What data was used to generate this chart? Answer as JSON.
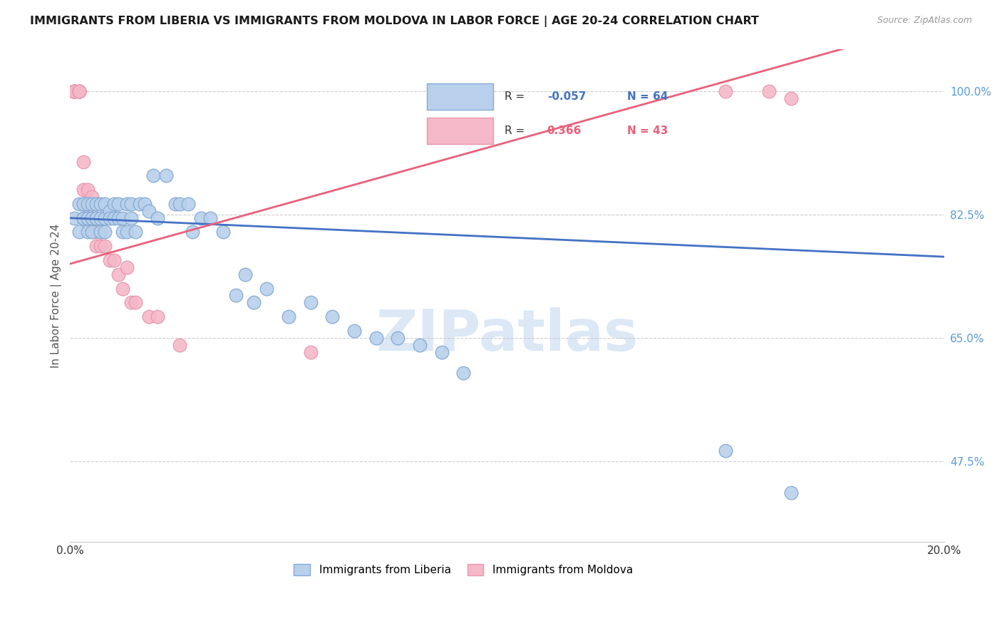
{
  "title": "IMMIGRANTS FROM LIBERIA VS IMMIGRANTS FROM MOLDOVA IN LABOR FORCE | AGE 20-24 CORRELATION CHART",
  "source": "Source: ZipAtlas.com",
  "ylabel": "In Labor Force | Age 20-24",
  "xlim": [
    0.0,
    0.2
  ],
  "ylim": [
    0.36,
    1.06
  ],
  "ytick_vals": [
    0.475,
    0.65,
    0.825,
    1.0
  ],
  "ytick_labels": [
    "47.5%",
    "65.0%",
    "82.5%",
    "100.0%"
  ],
  "r_liberia": -0.057,
  "n_liberia": 64,
  "r_moldova": 0.366,
  "n_moldova": 43,
  "line_color_liberia": "#4472c4",
  "line_color_moldova": "#e8607a",
  "dot_color_liberia": "#b8d0eb",
  "dot_color_moldova": "#f5b8c8",
  "dot_edge_liberia": "#85aad4",
  "dot_edge_moldova": "#e898b0",
  "watermark": "ZIPatlas",
  "liberia_x": [
    0.001,
    0.002,
    0.002,
    0.003,
    0.003,
    0.003,
    0.004,
    0.004,
    0.004,
    0.004,
    0.005,
    0.005,
    0.005,
    0.005,
    0.006,
    0.006,
    0.006,
    0.007,
    0.007,
    0.007,
    0.008,
    0.008,
    0.008,
    0.009,
    0.009,
    0.01,
    0.01,
    0.011,
    0.011,
    0.012,
    0.012,
    0.013,
    0.013,
    0.014,
    0.014,
    0.015,
    0.016,
    0.017,
    0.018,
    0.019,
    0.02,
    0.022,
    0.024,
    0.025,
    0.027,
    0.028,
    0.03,
    0.032,
    0.035,
    0.038,
    0.04,
    0.042,
    0.045,
    0.05,
    0.055,
    0.06,
    0.065,
    0.07,
    0.075,
    0.08,
    0.085,
    0.09,
    0.15,
    0.165
  ],
  "liberia_y": [
    0.82,
    0.84,
    0.8,
    0.82,
    0.84,
    0.82,
    0.82,
    0.84,
    0.82,
    0.8,
    0.82,
    0.84,
    0.82,
    0.8,
    0.82,
    0.84,
    0.82,
    0.84,
    0.82,
    0.8,
    0.82,
    0.84,
    0.8,
    0.83,
    0.82,
    0.84,
    0.82,
    0.82,
    0.84,
    0.8,
    0.82,
    0.8,
    0.84,
    0.84,
    0.82,
    0.8,
    0.84,
    0.84,
    0.83,
    0.88,
    0.82,
    0.88,
    0.84,
    0.84,
    0.84,
    0.8,
    0.82,
    0.82,
    0.8,
    0.71,
    0.74,
    0.7,
    0.72,
    0.68,
    0.7,
    0.68,
    0.66,
    0.65,
    0.65,
    0.64,
    0.63,
    0.6,
    0.49,
    0.43
  ],
  "moldova_x": [
    0.001,
    0.001,
    0.001,
    0.001,
    0.001,
    0.001,
    0.001,
    0.001,
    0.001,
    0.002,
    0.002,
    0.002,
    0.002,
    0.002,
    0.003,
    0.003,
    0.003,
    0.003,
    0.004,
    0.004,
    0.004,
    0.005,
    0.005,
    0.005,
    0.006,
    0.006,
    0.007,
    0.007,
    0.008,
    0.009,
    0.01,
    0.011,
    0.012,
    0.013,
    0.014,
    0.015,
    0.018,
    0.02,
    0.025,
    0.055,
    0.15,
    0.16,
    0.165
  ],
  "moldova_y": [
    1.0,
    1.0,
    1.0,
    1.0,
    1.0,
    1.0,
    1.0,
    1.0,
    1.0,
    1.0,
    1.0,
    1.0,
    1.0,
    1.0,
    0.9,
    0.86,
    0.84,
    0.82,
    0.86,
    0.84,
    0.82,
    0.85,
    0.8,
    0.82,
    0.8,
    0.78,
    0.8,
    0.78,
    0.78,
    0.76,
    0.76,
    0.74,
    0.72,
    0.75,
    0.7,
    0.7,
    0.68,
    0.68,
    0.64,
    0.63,
    1.0,
    1.0,
    0.99
  ]
}
